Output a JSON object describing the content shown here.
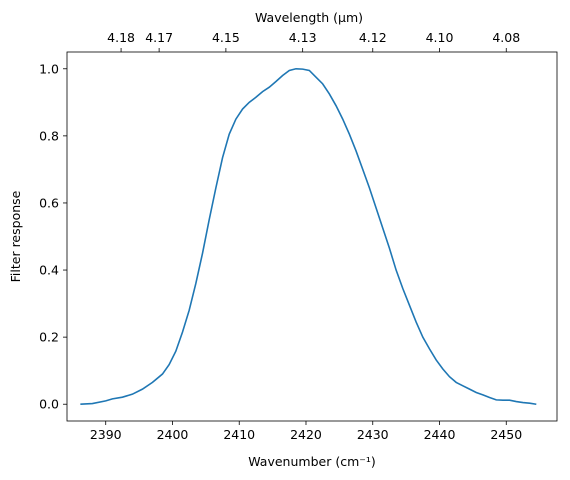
{
  "chart_data": {
    "type": "line",
    "title": "",
    "xlabel": "Wavenumber (cm⁻¹)",
    "ylabel": "Filter response",
    "top_xlabel": "Wavelength (μm)",
    "xlim": [
      2384.2,
      2457.6
    ],
    "ylim": [
      -0.05,
      1.05
    ],
    "x_ticks": [
      2390,
      2400,
      2410,
      2420,
      2430,
      2440,
      2450
    ],
    "y_ticks": [
      0.0,
      0.2,
      0.4,
      0.6,
      0.8,
      1.0
    ],
    "y_tick_labels": [
      "0.0",
      "0.2",
      "0.4",
      "0.6",
      "0.8",
      "1.0"
    ],
    "top_ticks": [
      {
        "wavenumber": 2392.3,
        "label": "4.18"
      },
      {
        "wavenumber": 2398.0,
        "label": "4.17"
      },
      {
        "wavenumber": 2408.0,
        "label": "4.15"
      },
      {
        "wavenumber": 2419.5,
        "label": "4.13"
      },
      {
        "wavenumber": 2430.0,
        "label": "4.12"
      },
      {
        "wavenumber": 2440.0,
        "label": "4.10"
      },
      {
        "wavenumber": 2450.0,
        "label": "4.08"
      }
    ],
    "grid": false,
    "series": [
      {
        "color": "#1f77b4",
        "x": [
          2386.2,
          2388.0,
          2390.0,
          2391.0,
          2392.5,
          2394.0,
          2395.5,
          2397.0,
          2398.5,
          2399.5,
          2400.5,
          2401.5,
          2402.5,
          2403.5,
          2404.5,
          2405.5,
          2406.5,
          2407.5,
          2408.5,
          2409.5,
          2410.5,
          2411.5,
          2412.5,
          2413.5,
          2414.5,
          2415.5,
          2416.5,
          2417.5,
          2418.5,
          2419.5,
          2420.5,
          2421.5,
          2422.5,
          2423.5,
          2424.5,
          2425.5,
          2426.5,
          2427.5,
          2428.5,
          2429.5,
          2430.5,
          2431.5,
          2432.5,
          2433.5,
          2434.5,
          2435.5,
          2436.5,
          2437.5,
          2438.5,
          2439.5,
          2440.5,
          2441.5,
          2442.5,
          2443.5,
          2444.5,
          2445.5,
          2446.5,
          2447.5,
          2448.5,
          2449.5,
          2450.5,
          2451.5,
          2452.5,
          2453.5,
          2454.5
        ],
        "y": [
          0.0,
          0.002,
          0.01,
          0.016,
          0.021,
          0.03,
          0.045,
          0.065,
          0.09,
          0.118,
          0.158,
          0.215,
          0.28,
          0.36,
          0.45,
          0.55,
          0.645,
          0.735,
          0.805,
          0.85,
          0.88,
          0.9,
          0.915,
          0.932,
          0.945,
          0.962,
          0.98,
          0.995,
          1.0,
          0.999,
          0.995,
          0.975,
          0.955,
          0.925,
          0.89,
          0.85,
          0.805,
          0.755,
          0.7,
          0.645,
          0.585,
          0.525,
          0.465,
          0.4,
          0.345,
          0.295,
          0.245,
          0.2,
          0.165,
          0.132,
          0.105,
          0.082,
          0.065,
          0.055,
          0.045,
          0.035,
          0.028,
          0.02,
          0.013,
          0.012,
          0.012,
          0.008,
          0.005,
          0.003,
          0.0
        ]
      }
    ]
  }
}
